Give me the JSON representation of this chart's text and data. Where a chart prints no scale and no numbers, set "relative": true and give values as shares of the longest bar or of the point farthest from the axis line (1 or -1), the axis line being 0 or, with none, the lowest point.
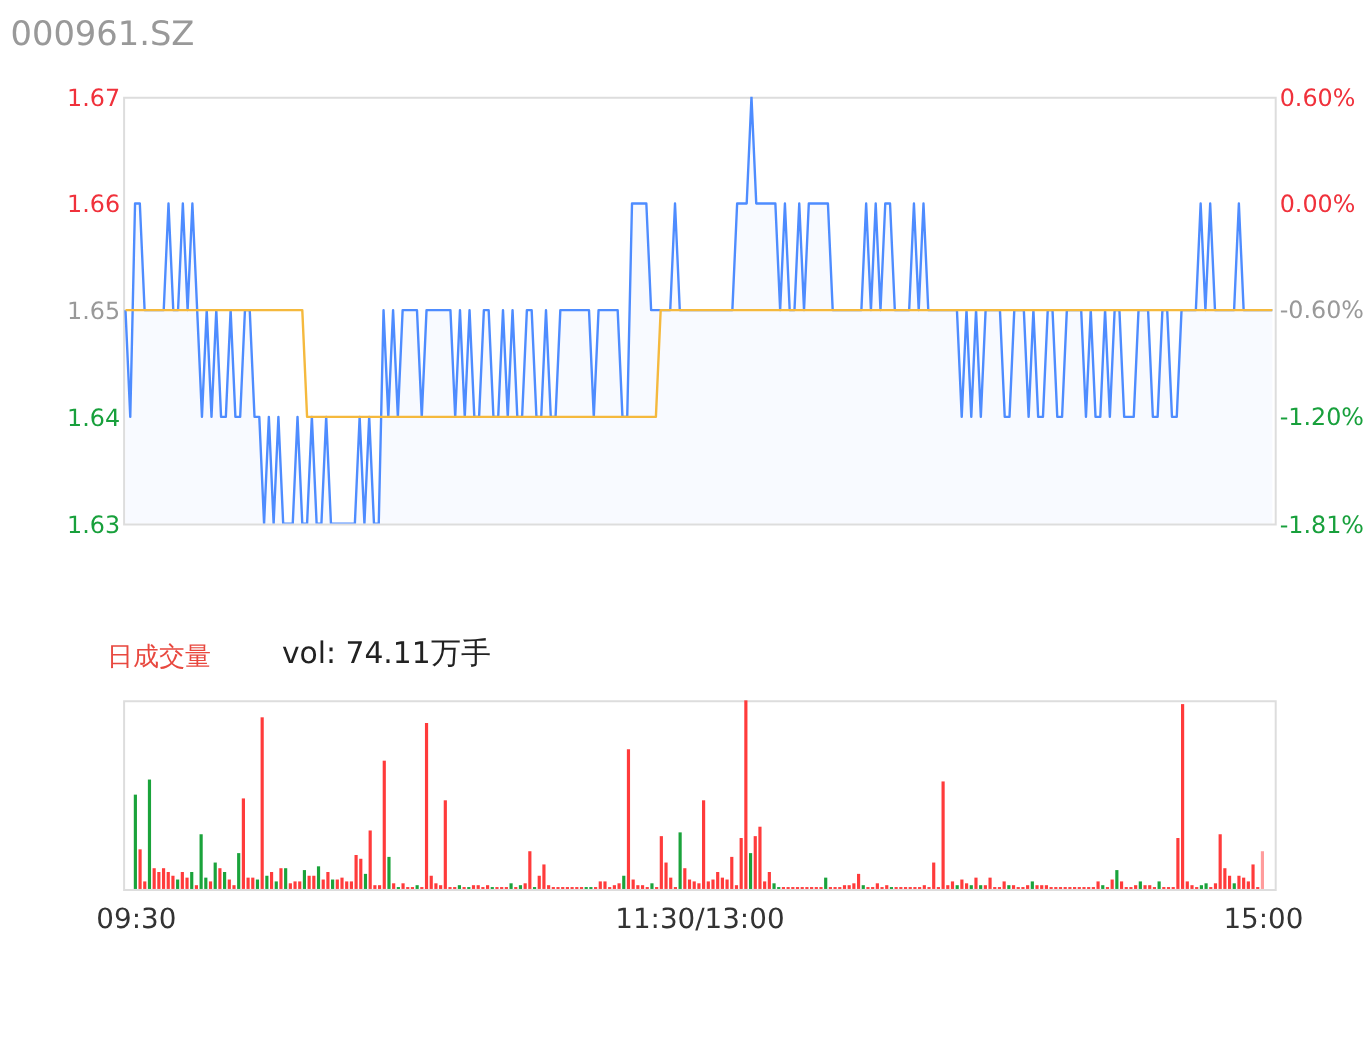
{
  "chart_data": [
    {
      "type": "line",
      "title": "000961.SZ",
      "ylim": [
        1.63,
        1.67
      ],
      "yticks": [
        1.67,
        1.66,
        1.65,
        1.64,
        1.63
      ],
      "y2lim": [
        -1.81,
        0.6
      ],
      "y2ticks": [
        {
          "value": 0.6,
          "label": "0.60%"
        },
        {
          "value": 0,
          "label": "0.00%"
        },
        {
          "value": -0.6,
          "label": "-0.60%"
        },
        {
          "value": -1.2,
          "label": "-1.20%"
        },
        {
          "value": -1.81,
          "label": "-1.81%"
        }
      ],
      "tick_labels": "y",
      "categories": [
        null,
        null,
        null,
        null,
        null,
        null,
        null,
        null,
        null,
        null,
        null,
        null,
        null,
        null,
        null,
        null,
        null,
        null,
        null,
        null,
        null,
        null,
        null,
        null,
        null,
        null,
        null,
        null,
        null,
        null,
        null,
        null,
        null,
        null,
        null,
        null,
        null,
        null,
        null,
        null,
        null,
        null,
        null,
        null,
        null,
        null,
        null,
        null,
        null,
        null,
        null,
        null,
        null,
        null,
        null,
        null,
        null,
        null,
        null,
        null,
        null,
        null,
        null,
        null,
        null,
        null,
        null,
        null,
        null,
        null,
        null,
        null,
        null,
        null,
        null,
        null,
        null,
        null,
        null,
        null,
        null,
        null,
        null,
        null,
        null,
        null,
        null,
        null,
        null,
        null,
        null,
        null,
        null,
        null,
        null,
        null,
        null,
        null,
        null,
        null,
        null,
        null,
        null,
        null,
        null,
        null,
        null,
        null,
        null,
        null,
        null,
        null,
        null,
        null,
        null,
        null,
        null,
        null,
        null,
        null,
        null,
        null,
        null,
        null,
        null,
        null,
        null,
        null,
        null,
        null,
        null,
        null,
        null,
        null,
        null,
        null,
        null,
        null,
        null,
        null,
        null,
        null,
        null,
        null,
        null,
        null,
        null,
        null,
        null,
        null,
        null,
        null,
        null,
        null,
        null,
        null,
        null,
        null,
        null,
        null,
        null,
        null,
        null,
        null,
        null,
        null,
        null,
        null,
        null,
        null,
        null,
        null,
        null,
        null,
        null,
        null,
        null,
        null,
        null,
        null,
        null,
        null,
        null,
        null,
        null,
        null,
        null,
        null,
        null,
        null,
        null,
        null,
        null,
        null,
        null,
        null,
        null,
        null,
        null,
        null,
        null,
        null,
        null,
        null,
        null,
        null,
        null,
        null,
        null,
        null,
        null,
        null,
        null,
        null,
        null,
        null,
        null,
        null,
        null,
        null,
        null,
        null,
        null,
        null,
        null,
        null,
        null,
        null,
        null,
        null,
        null,
        null,
        null,
        null,
        null,
        null,
        null,
        null,
        null,
        null,
        null
      ],
      "series": [
        {
          "type": "area",
          "color": "#4e8cff",
          "values": [
            1.65,
            1.64,
            1.66,
            1.66,
            1.65,
            1.65,
            1.65,
            1.65,
            1.65,
            1.66,
            1.65,
            1.65,
            1.66,
            1.65,
            1.66,
            1.65,
            1.64,
            1.65,
            1.64,
            1.65,
            1.64,
            1.64,
            1.65,
            1.64,
            1.64,
            1.65,
            1.65,
            1.64,
            1.64,
            1.63,
            1.64,
            1.63,
            1.64,
            1.63,
            1.63,
            1.63,
            1.64,
            1.63,
            1.63,
            1.64,
            1.63,
            1.63,
            1.64,
            1.63,
            1.63,
            1.63,
            1.63,
            1.63,
            1.63,
            1.64,
            1.63,
            1.64,
            1.63,
            1.63,
            1.65,
            1.64,
            1.65,
            1.64,
            1.65,
            1.65,
            1.65,
            1.65,
            1.64,
            1.65,
            1.65,
            1.65,
            1.65,
            1.65,
            1.65,
            1.64,
            1.65,
            1.64,
            1.65,
            1.64,
            1.64,
            1.65,
            1.65,
            1.64,
            1.64,
            1.65,
            1.64,
            1.65,
            1.64,
            1.64,
            1.65,
            1.65,
            1.64,
            1.64,
            1.65,
            1.64,
            1.64,
            1.65,
            1.65,
            1.65,
            1.65,
            1.65,
            1.65,
            1.65,
            1.64,
            1.65,
            1.65,
            1.65,
            1.65,
            1.65,
            1.64,
            1.64,
            1.66,
            1.66,
            1.66,
            1.66,
            1.65,
            1.65,
            1.65,
            1.65,
            1.65,
            1.66,
            1.65,
            1.65,
            1.65,
            1.65,
            1.65,
            1.65,
            1.65,
            1.65,
            1.65,
            1.65,
            1.65,
            1.65,
            1.66,
            1.66,
            1.66,
            1.67,
            1.66,
            1.66,
            1.66,
            1.66,
            1.66,
            1.65,
            1.66,
            1.65,
            1.65,
            1.66,
            1.65,
            1.66,
            1.66,
            1.66,
            1.66,
            1.66,
            1.65,
            1.65,
            1.65,
            1.65,
            1.65,
            1.65,
            1.65,
            1.66,
            1.65,
            1.66,
            1.65,
            1.66,
            1.66,
            1.65,
            1.65,
            1.65,
            1.65,
            1.66,
            1.65,
            1.66,
            1.65,
            1.65,
            1.65,
            1.65,
            1.65,
            1.65,
            1.65,
            1.64,
            1.65,
            1.64,
            1.65,
            1.64,
            1.65,
            1.65,
            1.65,
            1.65,
            1.64,
            1.64,
            1.65,
            1.65,
            1.65,
            1.64,
            1.65,
            1.64,
            1.64,
            1.65,
            1.65,
            1.64,
            1.64,
            1.65,
            1.65,
            1.65,
            1.65,
            1.64,
            1.65,
            1.64,
            1.64,
            1.65,
            1.64,
            1.65,
            1.65,
            1.64,
            1.64,
            1.64,
            1.65,
            1.65,
            1.65,
            1.64,
            1.64,
            1.65,
            1.65,
            1.64,
            1.64,
            1.65,
            1.65,
            1.65,
            1.65,
            1.66,
            1.65,
            1.66,
            1.65,
            1.65,
            1.65,
            1.65,
            1.65,
            1.66,
            1.65,
            1.65,
            1.65,
            1.65,
            1.65,
            1.65,
            1.65
          ]
        },
        {
          "type": "line",
          "color": "#f5b93d",
          "values": [
            1.65,
            1.65,
            1.65,
            1.65,
            1.65,
            1.65,
            1.65,
            1.65,
            1.65,
            1.65,
            1.65,
            1.65,
            1.65,
            1.65,
            1.65,
            1.65,
            1.65,
            1.65,
            1.65,
            1.65,
            1.65,
            1.65,
            1.65,
            1.65,
            1.65,
            1.65,
            1.65,
            1.65,
            1.65,
            1.65,
            1.65,
            1.65,
            1.65,
            1.65,
            1.65,
            1.65,
            1.65,
            1.65,
            1.64,
            1.64,
            1.64,
            1.64,
            1.64,
            1.64,
            1.64,
            1.64,
            1.64,
            1.64,
            1.64,
            1.64,
            1.64,
            1.64,
            1.64,
            1.64,
            1.64,
            1.64,
            1.64,
            1.64,
            1.64,
            1.64,
            1.64,
            1.64,
            1.64,
            1.64,
            1.64,
            1.64,
            1.64,
            1.64,
            1.64,
            1.64,
            1.64,
            1.64,
            1.64,
            1.64,
            1.64,
            1.64,
            1.64,
            1.64,
            1.64,
            1.64,
            1.64,
            1.64,
            1.64,
            1.64,
            1.64,
            1.64,
            1.64,
            1.64,
            1.64,
            1.64,
            1.64,
            1.64,
            1.64,
            1.64,
            1.64,
            1.64,
            1.64,
            1.64,
            1.64,
            1.64,
            1.64,
            1.64,
            1.64,
            1.64,
            1.64,
            1.64,
            1.64,
            1.64,
            1.64,
            1.64,
            1.64,
            1.64,
            1.65,
            1.65,
            1.65,
            1.65,
            1.65,
            1.65,
            1.65,
            1.65,
            1.65,
            1.65,
            1.65,
            1.65,
            1.65,
            1.65,
            1.65,
            1.65,
            1.65,
            1.65,
            1.65,
            1.65,
            1.65,
            1.65,
            1.65,
            1.65,
            1.65,
            1.65,
            1.65,
            1.65,
            1.65,
            1.65,
            1.65,
            1.65,
            1.65,
            1.65,
            1.65,
            1.65,
            1.65,
            1.65,
            1.65,
            1.65,
            1.65,
            1.65,
            1.65,
            1.65,
            1.65,
            1.65,
            1.65,
            1.65,
            1.65,
            1.65,
            1.65,
            1.65,
            1.65,
            1.65,
            1.65,
            1.65,
            1.65,
            1.65,
            1.65,
            1.65,
            1.65,
            1.65,
            1.65,
            1.65,
            1.65,
            1.65,
            1.65,
            1.65,
            1.65,
            1.65,
            1.65,
            1.65,
            1.65,
            1.65,
            1.65,
            1.65,
            1.65,
            1.65,
            1.65,
            1.65,
            1.65,
            1.65,
            1.65,
            1.65,
            1.65,
            1.65,
            1.65,
            1.65,
            1.65,
            1.65,
            1.65,
            1.65,
            1.65,
            1.65,
            1.65,
            1.65,
            1.65,
            1.65,
            1.65,
            1.65,
            1.65,
            1.65,
            1.65,
            1.65,
            1.65,
            1.65,
            1.65,
            1.65,
            1.65,
            1.65,
            1.65,
            1.65,
            1.65,
            1.65,
            1.65,
            1.65,
            1.65,
            1.65,
            1.65,
            1.65,
            1.65,
            1.65,
            1.65,
            1.65,
            1.65,
            1.65,
            1.65,
            1.65,
            1.65
          ]
        }
      ]
    },
    {
      "type": "bar",
      "relative": true,
      "title": "日成交量",
      "annotations": [
        "vol: 74.11万手"
      ],
      "tick_labels": "x",
      "categories": [
        "09:30",
        null,
        null,
        null,
        null,
        null,
        null,
        null,
        null,
        null,
        null,
        null,
        null,
        null,
        null,
        null,
        null,
        null,
        null,
        null,
        null,
        null,
        null,
        null,
        null,
        null,
        null,
        null,
        null,
        null,
        null,
        null,
        null,
        null,
        null,
        null,
        null,
        null,
        null,
        null,
        null,
        null,
        null,
        null,
        null,
        null,
        null,
        null,
        null,
        null,
        null,
        null,
        null,
        null,
        null,
        null,
        null,
        null,
        null,
        null,
        null,
        null,
        null,
        null,
        null,
        null,
        null,
        null,
        null,
        null,
        null,
        null,
        null,
        null,
        null,
        null,
        null,
        null,
        null,
        null,
        null,
        null,
        null,
        null,
        null,
        null,
        null,
        null,
        null,
        null,
        null,
        null,
        null,
        null,
        null,
        null,
        null,
        null,
        null,
        null,
        null,
        null,
        null,
        null,
        null,
        null,
        null,
        null,
        null,
        null,
        null,
        null,
        null,
        null,
        null,
        null,
        null,
        null,
        null,
        null,
        "11:30/13:00",
        null,
        null,
        null,
        null,
        null,
        null,
        null,
        null,
        null,
        null,
        null,
        null,
        null,
        null,
        null,
        null,
        null,
        null,
        null,
        null,
        null,
        null,
        null,
        null,
        null,
        null,
        null,
        null,
        null,
        null,
        null,
        null,
        null,
        null,
        null,
        null,
        null,
        null,
        null,
        null,
        null,
        null,
        null,
        null,
        null,
        null,
        null,
        null,
        null,
        null,
        null,
        null,
        null,
        null,
        null,
        null,
        null,
        null,
        null,
        null,
        null,
        null,
        null,
        null,
        null,
        null,
        null,
        null,
        null,
        null,
        null,
        null,
        null,
        null,
        null,
        null,
        null,
        null,
        null,
        null,
        null,
        null,
        null,
        null,
        null,
        null,
        null,
        null,
        null,
        null,
        null,
        null,
        null,
        null,
        null,
        null,
        null,
        null,
        null,
        null,
        null,
        null,
        null,
        null,
        null,
        null,
        null,
        null,
        null,
        null,
        null,
        null,
        null,
        null,
        null,
        null,
        null,
        null,
        null,
        "15:00"
      ],
      "values": [
        0.5,
        0.21,
        0.04,
        0.58,
        0.11,
        0.09,
        0.11,
        0.09,
        0.07,
        0.05,
        0.09,
        0.06,
        0.09,
        0.02,
        0.29,
        0.06,
        0.04,
        0.14,
        0.11,
        0.09,
        0.05,
        0.02,
        0.19,
        0.48,
        0.06,
        0.06,
        0.05,
        0.91,
        0.07,
        0.09,
        0.04,
        0.11,
        0.11,
        0.03,
        0.04,
        0.04,
        0.1,
        0.07,
        0.07,
        0.12,
        0.05,
        0.09,
        0.05,
        0.05,
        0.06,
        0.04,
        0.04,
        0.18,
        0.16,
        0.08,
        0.31,
        0.02,
        0.02,
        0.68,
        0.17,
        0.03,
        0.01,
        0.03,
        0.01,
        0.01,
        0.02,
        0.01,
        0.88,
        0.07,
        0.03,
        0.02,
        0.47,
        0.01,
        0.01,
        0.02,
        0.01,
        0.01,
        0.02,
        0.02,
        0.01,
        0.02,
        0.01,
        0.01,
        0.01,
        0.01,
        0.03,
        0.01,
        0.02,
        0.03,
        0.2,
        0.01,
        0.07,
        0.13,
        0.02,
        0.01,
        0.01,
        0.01,
        0.01,
        0.01,
        0.01,
        0.01,
        0.01,
        0.01,
        0.01,
        0.04,
        0.04,
        0.01,
        0.02,
        0.03,
        0.07,
        0.74,
        0.05,
        0.02,
        0.02,
        0.01,
        0.03,
        0.01,
        0.28,
        0.14,
        0.06,
        0.01,
        0.3,
        0.11,
        0.05,
        0.04,
        0.03,
        0.47,
        0.04,
        0.05,
        0.09,
        0.06,
        0.05,
        0.17,
        0.02,
        0.27,
        1,
        0.19,
        0.28,
        0.33,
        0.04,
        0.09,
        0.03,
        0.01,
        0.01,
        0.01,
        0.01,
        0.01,
        0.01,
        0.01,
        0.01,
        0.01,
        0.01,
        0.06,
        0.01,
        0.01,
        0.01,
        0.02,
        0.02,
        0.03,
        0.08,
        0.02,
        0.01,
        0.01,
        0.03,
        0.01,
        0.02,
        0.01,
        0.01,
        0.01,
        0.01,
        0.01,
        0.01,
        0.01,
        0.02,
        0.01,
        0.14,
        0.01,
        0.57,
        0.02,
        0.04,
        0.02,
        0.05,
        0.03,
        0.02,
        0.06,
        0.02,
        0.02,
        0.06,
        0.01,
        0.01,
        0.04,
        0.02,
        0.02,
        0.01,
        0.01,
        0.02,
        0.04,
        0.02,
        0.02,
        0.02,
        0.01,
        0.01,
        0.01,
        0.01,
        0.01,
        0.01,
        0.01,
        0.01,
        0.01,
        0.01,
        0.04,
        0.02,
        0.01,
        0.05,
        0.1,
        0.04,
        0.01,
        0.01,
        0.02,
        0.04,
        0.02,
        0.02,
        0.01,
        0.04,
        0.01,
        0.01,
        0.01,
        0.27,
        0.98,
        0.04,
        0.02,
        0.01,
        0.02,
        0.03,
        0.01,
        0.03,
        0.29,
        0.11,
        0.07,
        0.03,
        0.07,
        0.06,
        0.04,
        0.13,
        0.01,
        0.2
      ],
      "colors": [
        "#1aa33b",
        "#ff3b3b",
        "#ff3b3b",
        "#1aa33b",
        "#ff3b3b",
        "#ff3b3b",
        "#ff3b3b",
        "#ff3b3b",
        "#ff3b3b",
        "#1aa33b",
        "#ff3b3b",
        "#ff3b3b",
        "#1aa33b",
        "#ff3b3b",
        "#1aa33b",
        "#1aa33b",
        "#ff3b3b",
        "#1aa33b",
        "#ff3b3b",
        "#1aa33b",
        "#ff3b3b",
        "#ff3b3b",
        "#1aa33b",
        "#ff3b3b",
        "#ff3b3b",
        "#ff3b3b",
        "#1aa33b",
        "#ff3b3b",
        "#1aa33b",
        "#ff3b3b",
        "#1aa33b",
        "#ff3b3b",
        "#1aa33b",
        "#ff3b3b",
        "#ff3b3b",
        "#ff3b3b",
        "#1aa33b",
        "#ff3b3b",
        "#ff3b3b",
        "#1aa33b",
        "#ff3b3b",
        "#ff3b3b",
        "#1aa33b",
        "#ff3b3b",
        "#ff3b3b",
        "#ff3b3b",
        "#ff3b3b",
        "#ff3b3b",
        "#ff3b3b",
        "#1aa33b",
        "#ff3b3b",
        "#ff3b3b",
        "#ff3b3b",
        "#ff3b3b",
        "#1aa33b",
        "#ff3b3b",
        "#1aa33b",
        "#ff3b3b",
        "#ff3b3b",
        "#ff3b3b",
        "#1aa33b",
        "#ff3b3b",
        "#ff3b3b",
        "#ff3b3b",
        "#ff3b3b",
        "#ff3b3b",
        "#ff3b3b",
        "#ff3b3b",
        "#ff3b3b",
        "#1aa33b",
        "#ff3b3b",
        "#1aa33b",
        "#ff3b3b",
        "#ff3b3b",
        "#ff3b3b",
        "#ff3b3b",
        "#1aa33b",
        "#ff3b3b",
        "#ff3b3b",
        "#ff3b3b",
        "#1aa33b",
        "#ff3b3b",
        "#1aa33b",
        "#ff3b3b",
        "#ff3b3b",
        "#1aa33b",
        "#ff3b3b",
        "#ff3b3b",
        "#ff3b3b",
        "#ff3b3b",
        "#ff3b3b",
        "#ff3b3b",
        "#ff3b3b",
        "#ff3b3b",
        "#ff3b3b",
        "#ff3b3b",
        "#1aa33b",
        "#1aa33b",
        "#ff3b3b",
        "#ff3b3b",
        "#ff3b3b",
        "#ff3b3b",
        "#ff3b3b",
        "#ff3b3b",
        "#1aa33b",
        "#ff3b3b",
        "#ff3b3b",
        "#ff3b3b",
        "#ff3b3b",
        "#ff3b3b",
        "#1aa33b",
        "#ff3b3b",
        "#ff3b3b",
        "#ff3b3b",
        "#ff3b3b",
        "#ff3b3b",
        "#1aa33b",
        "#ff3b3b",
        "#ff3b3b",
        "#ff3b3b",
        "#ff3b3b",
        "#ff3b3b",
        "#ff3b3b",
        "#ff3b3b",
        "#ff3b3b",
        "#ff3b3b",
        "#ff3b3b",
        "#ff3b3b",
        "#ff3b3b",
        "#ff3b3b",
        "#ff3b3b",
        "#1aa33b",
        "#ff3b3b",
        "#ff3b3b",
        "#ff3b3b",
        "#ff3b3b",
        "#1aa33b",
        "#1aa33b",
        "#ff3b3b",
        "#ff3b3b",
        "#ff3b3b",
        "#ff3b3b",
        "#ff3b3b",
        "#ff3b3b",
        "#ff3b3b",
        "#ff3b3b",
        "#ff3b3b",
        "#1aa33b",
        "#ff3b3b",
        "#ff3b3b",
        "#ff3b3b",
        "#ff3b3b",
        "#ff3b3b",
        "#ff3b3b",
        "#ff3b3b",
        "#1aa33b",
        "#ff3b3b",
        "#ff3b3b",
        "#ff3b3b",
        "#ff3b3b",
        "#ff3b3b",
        "#1aa33b",
        "#ff3b3b",
        "#ff3b3b",
        "#ff3b3b",
        "#ff3b3b",
        "#ff3b3b",
        "#ff3b3b",
        "#ff3b3b",
        "#ff3b3b",
        "#ff3b3b",
        "#ff3b3b",
        "#ff3b3b",
        "#ff3b3b",
        "#ff3b3b",
        "#1aa33b",
        "#ff3b3b",
        "#ff3b3b",
        "#1aa33b",
        "#ff3b3b",
        "#1aa33b",
        "#ff3b3b",
        "#ff3b3b",
        "#ff3b3b",
        "#ff3b3b",
        "#ff3b3b",
        "#1aa33b",
        "#ff3b3b",
        "#ff3b3b",
        "#ff3b3b",
        "#ff3b3b",
        "#1aa33b",
        "#ff3b3b",
        "#ff3b3b",
        "#ff3b3b",
        "#ff3b3b",
        "#ff3b3b",
        "#ff3b3b",
        "#ff3b3b",
        "#ff3b3b",
        "#ff3b3b",
        "#ff3b3b",
        "#ff3b3b",
        "#ff3b3b",
        "#ff3b3b",
        "#ff3b3b",
        "#1aa33b",
        "#ff3b3b",
        "#ff3b3b",
        "#1aa33b",
        "#ff3b3b",
        "#ff3b3b",
        "#ff3b3b",
        "#ff3b3b",
        "#1aa33b",
        "#ff3b3b",
        "#ff3b3b",
        "#ff3b3b",
        "#1aa33b",
        "#ff3b3b",
        "#ff3b3b",
        "#ff3b3b",
        "#ff3b3b",
        "#ff3b3b",
        "#ff3b3b",
        "#ff3b3b",
        "#ff3b3b",
        "#1aa33b",
        "#1aa33b",
        "#ff3b3b",
        "#ff3b3b",
        "#ff3b3b",
        "#ff3b3b",
        "#ff3b3b",
        "#1aa33b",
        "#ff3b3b",
        "#ff3b3b",
        "#ff3b3b",
        "#ff3b3b",
        "#ff3b3b",
        "#ff9c9c"
      ]
    }
  ]
}
